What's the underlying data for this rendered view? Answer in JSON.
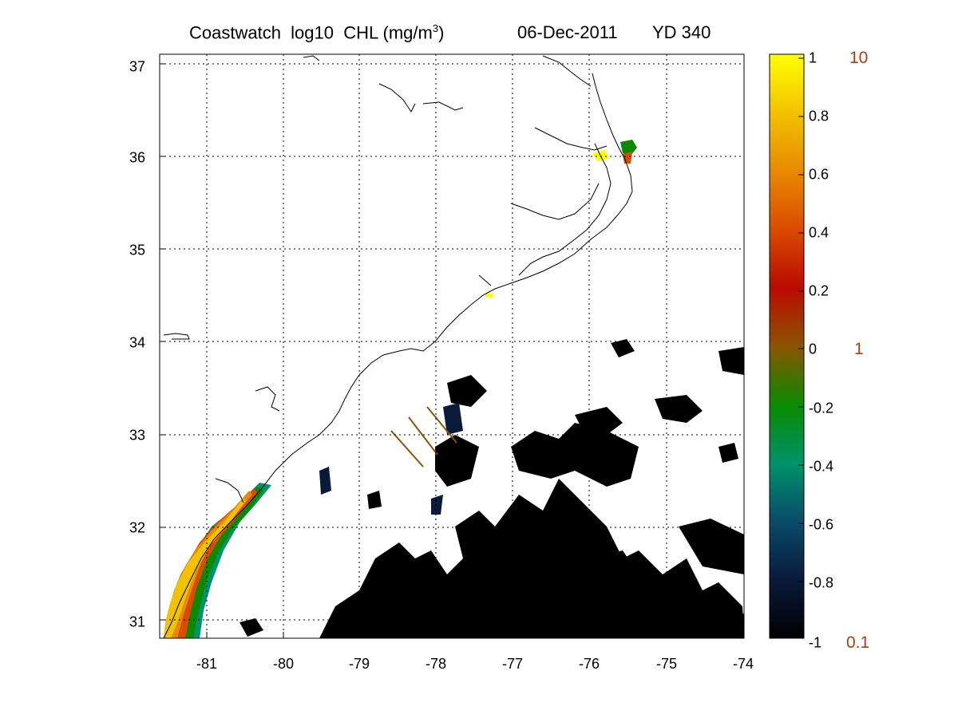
{
  "title": {
    "prefix": "Coastwatch  log10  CHL (mg/m",
    "superscript": "3",
    "suffix": ")",
    "date": "06-Dec-2011",
    "yearday": "YD 340"
  },
  "map": {
    "x_ticks": [
      "-81",
      "-80",
      "-79",
      "-78",
      "-77",
      "-76",
      "-75",
      "-74"
    ],
    "y_ticks": [
      "37",
      "36",
      "35",
      "34",
      "33",
      "32",
      "31"
    ],
    "lon_range": [
      -81.5,
      -74
    ],
    "lat_range": [
      31,
      37.1
    ],
    "grid": true,
    "grid_style": "dotted"
  },
  "colorbar": {
    "ticks": [
      "1",
      "0.8",
      "0.6",
      "0.4",
      "0.2",
      "0",
      "-0.2",
      "-0.4",
      "-0.6",
      "-0.8",
      "-1"
    ],
    "range": [
      -1,
      1
    ],
    "right_labels": [
      "10",
      "1",
      "0.1"
    ],
    "colors": [
      "#ffff00",
      "#f2c200",
      "#e88a00",
      "#d94b00",
      "#b90b00",
      "#8a5500",
      "#0b8a00",
      "#00926a",
      "#0b4a6a",
      "#0a1a3a",
      "#000000"
    ]
  },
  "colors": {
    "land_outline": "#000000",
    "right_label": "#b63a10",
    "coastal_high": "#e88a00",
    "no_data_dark": "#000000"
  }
}
